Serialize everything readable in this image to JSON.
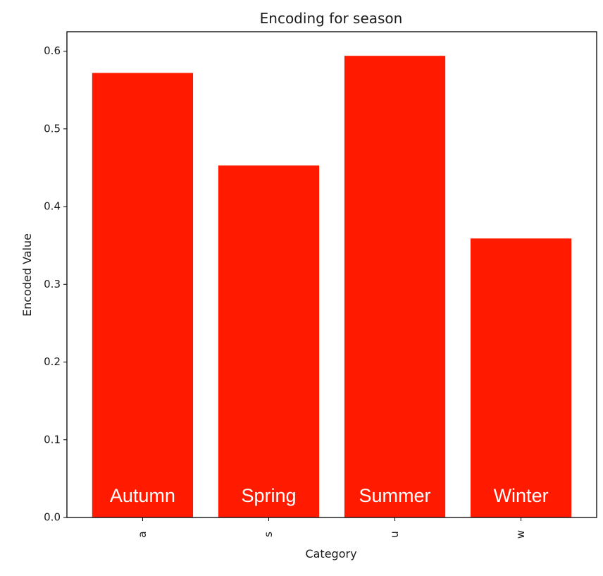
{
  "chart_data": {
    "type": "bar",
    "title": "Encoding for season",
    "xlabel": "Category",
    "ylabel": "Encoded Value",
    "categories": [
      "a",
      "s",
      "u",
      "w"
    ],
    "values": [
      0.572,
      0.453,
      0.594,
      0.359
    ],
    "bar_labels": [
      "Autumn",
      "Spring",
      "Summer",
      "Winter"
    ],
    "ylim": [
      0,
      0.625
    ],
    "yticks": [
      "0.0",
      "0.1",
      "0.2",
      "0.3",
      "0.4",
      "0.5",
      "0.6"
    ],
    "grid": false,
    "bar_color": "#ff1a00",
    "label_color": "#ffffff"
  }
}
